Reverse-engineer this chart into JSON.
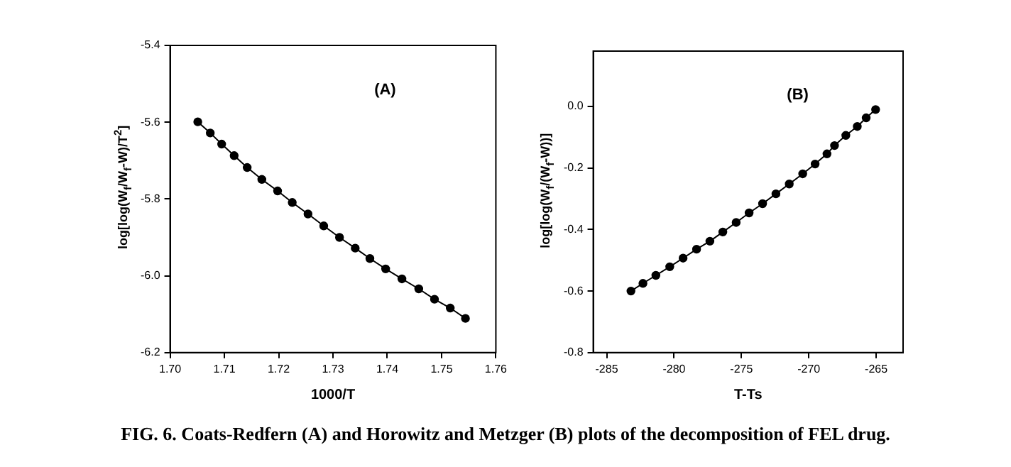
{
  "chart_data": [
    {
      "type": "line",
      "xlabel": "1000/T",
      "ylabel": "log[log(W$_{f}$/W$_{f}$-W)/T$^{2}$]",
      "annotations": [
        "(A)",
        "FIG. 6. Coats-Redfern (A) and Horowitz and Metzger (B) plots of the decomposition of FEL drug."
      ],
      "xlim": [
        1.7,
        1.76
      ],
      "xticks": [
        {
          "value": 1.7,
          "label": "1.70"
        },
        {
          "value": 1.71,
          "label": "1.71"
        },
        {
          "value": 1.72,
          "label": "1.72"
        },
        {
          "value": 1.73,
          "label": "1.73"
        },
        {
          "value": 1.74,
          "label": "1.74"
        },
        {
          "value": 1.75,
          "label": "1.75"
        },
        {
          "value": 1.76,
          "label": "1.76"
        }
      ],
      "ylim": [
        -6.2,
        -5.4
      ],
      "yticks": [
        -6.2,
        {
          "value": -6.0,
          "label": "-6.0"
        },
        -5.8,
        -5.6,
        -5.4
      ],
      "grid": false,
      "legend": false,
      "marker": "circle",
      "line_style": "solid",
      "x": [
        1.7051,
        1.7074,
        1.7095,
        1.7118,
        1.7142,
        1.7169,
        1.7198,
        1.7225,
        1.7254,
        1.7283,
        1.7312,
        1.7341,
        1.7368,
        1.7397,
        1.7427,
        1.7458,
        1.7487,
        1.7516,
        1.7544
      ],
      "series": [
        {
          "color": "#000000",
          "values": [
            -5.599,
            -5.628,
            -5.657,
            -5.687,
            -5.718,
            -5.749,
            -5.779,
            -5.809,
            -5.839,
            -5.87,
            -5.9,
            -5.928,
            -5.955,
            -5.982,
            -6.008,
            -6.034,
            -6.061,
            -6.084,
            -6.111
          ]
        }
      ]
    },
    {
      "type": "line",
      "xlabel": "T-Ts",
      "ylabel": "log[log(W$_{f}$/(W$_{f}$-W))]",
      "annotations": [
        "(B)"
      ],
      "xlim": [
        -286,
        -263
      ],
      "xticks": [
        -285,
        -280,
        -275,
        -270,
        -265
      ],
      "ylim": [
        -0.8,
        0.18
      ],
      "yticks": [
        {
          "value": -0.8,
          "label": "-0.8"
        },
        {
          "value": -0.6,
          "label": "-0.6"
        },
        {
          "value": -0.4,
          "label": "-0.4"
        },
        {
          "value": -0.2,
          "label": "-0.2"
        },
        {
          "value": 0,
          "label": "0.0"
        }
      ],
      "grid": false,
      "legend": false,
      "marker": "circle",
      "line_style": "solid",
      "x": [
        -283.2,
        -282.31,
        -281.35,
        -280.32,
        -279.33,
        -278.33,
        -277.34,
        -276.38,
        -275.39,
        -274.43,
        -273.43,
        -272.44,
        -271.45,
        -270.45,
        -269.53,
        -268.65,
        -268.09,
        -267.25,
        -266.4,
        -265.74,
        -265.04
      ],
      "series": [
        {
          "color": "#000000",
          "values": [
            -0.6,
            -0.575,
            -0.549,
            -0.521,
            -0.493,
            -0.464,
            -0.438,
            -0.408,
            -0.377,
            -0.346,
            -0.316,
            -0.284,
            -0.252,
            -0.219,
            -0.187,
            -0.154,
            -0.127,
            -0.094,
            -0.065,
            -0.037,
            -0.01
          ]
        }
      ]
    }
  ]
}
